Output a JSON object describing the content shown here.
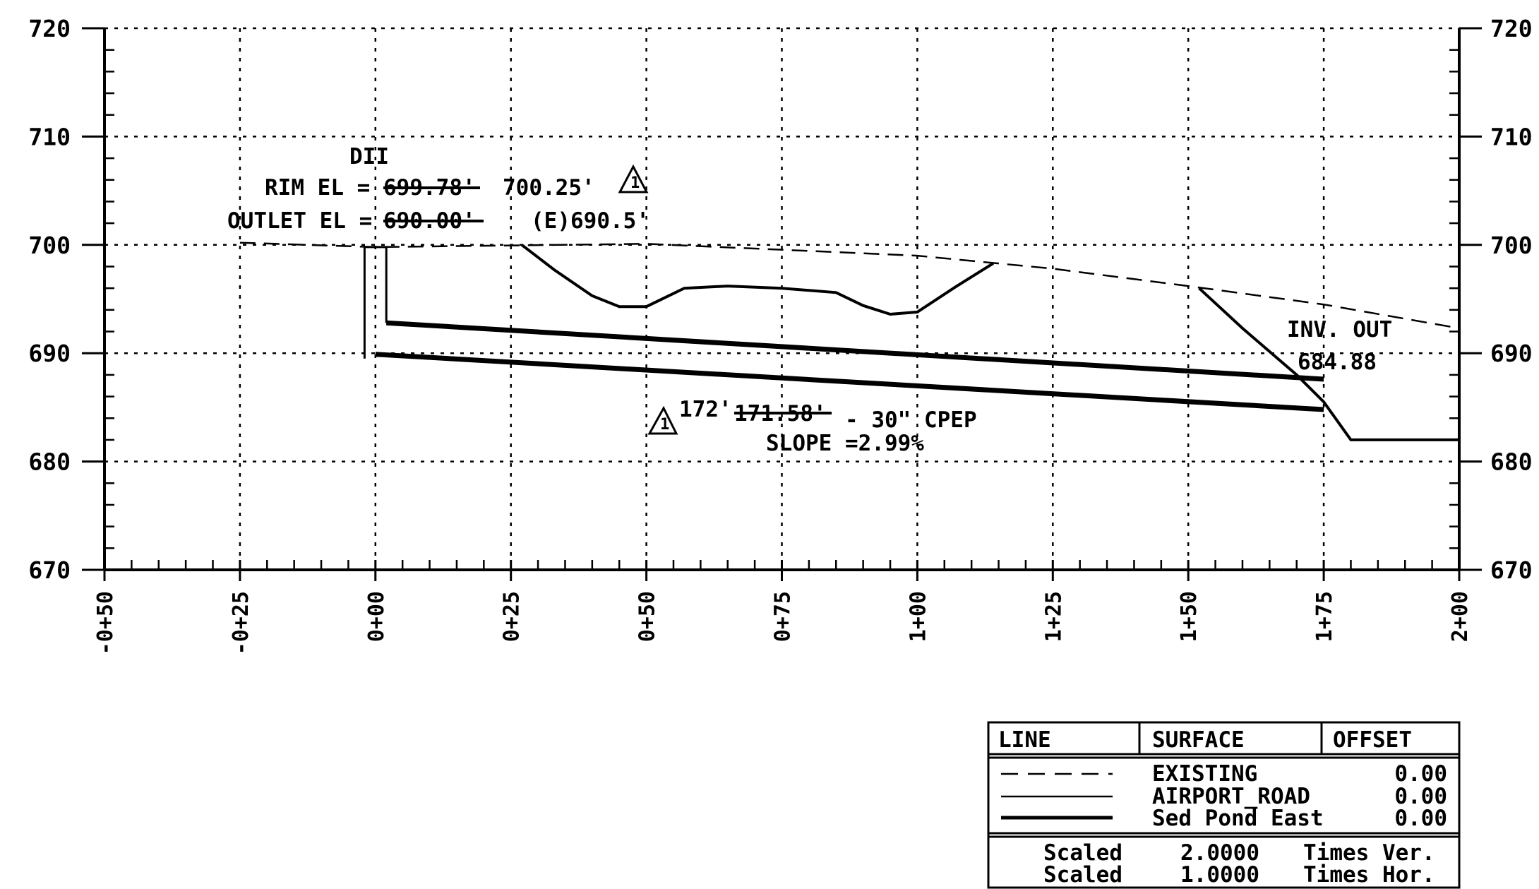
{
  "chart_data": {
    "type": "line",
    "title": "",
    "xlabel": "",
    "ylabel": "",
    "x_range": [
      -50,
      200
    ],
    "y_range": [
      670,
      720
    ],
    "x_ticks": [
      {
        "value": -50,
        "label": "-0+50"
      },
      {
        "value": -25,
        "label": "-0+25"
      },
      {
        "value": 0,
        "label": "0+00"
      },
      {
        "value": 25,
        "label": "0+25"
      },
      {
        "value": 50,
        "label": "0+50"
      },
      {
        "value": 75,
        "label": "0+75"
      },
      {
        "value": 100,
        "label": "1+00"
      },
      {
        "value": 125,
        "label": "1+25"
      },
      {
        "value": 150,
        "label": "1+50"
      },
      {
        "value": 175,
        "label": "1+75"
      },
      {
        "value": 200,
        "label": "2+00"
      }
    ],
    "y_ticks": [
      {
        "value": 670,
        "label": "670"
      },
      {
        "value": 680,
        "label": "680"
      },
      {
        "value": 690,
        "label": "690"
      },
      {
        "value": 700,
        "label": "700"
      },
      {
        "value": 710,
        "label": "710"
      },
      {
        "value": 720,
        "label": "720"
      }
    ],
    "grid": true,
    "series": [
      {
        "name": "EXISTING",
        "style": "dashed",
        "points": [
          [
            -25,
            700.2
          ],
          [
            0,
            699.8
          ],
          [
            50,
            700.1
          ],
          [
            100,
            699.0
          ],
          [
            125,
            697.8
          ],
          [
            150,
            696.2
          ],
          [
            175,
            694.5
          ],
          [
            200,
            692.3
          ]
        ]
      },
      {
        "name": "AIRPORT_ROAD",
        "style": "solid",
        "points": [
          [
            27,
            700.0
          ],
          [
            33,
            697.7
          ],
          [
            40,
            695.3
          ],
          [
            45,
            694.3
          ],
          [
            50,
            694.3
          ],
          [
            57,
            696.0
          ],
          [
            65,
            696.2
          ],
          [
            75,
            696.0
          ],
          [
            85,
            695.6
          ],
          [
            90,
            694.4
          ],
          [
            95,
            693.6
          ],
          [
            100,
            693.8
          ],
          [
            107,
            696.1
          ],
          [
            114,
            698.3
          ]
        ]
      },
      {
        "name": "AIRPORT_ROAD",
        "style": "solid",
        "points": [
          [
            152,
            696.0
          ],
          [
            160,
            692.3
          ],
          [
            170,
            688.0
          ],
          [
            175,
            685.5
          ],
          [
            180,
            682.0
          ],
          [
            200,
            682.0
          ]
        ]
      },
      {
        "name": "Sed Pond East",
        "style": "heavy",
        "points": [
          [
            2,
            692.8
          ],
          [
            175,
            687.6
          ]
        ]
      },
      {
        "name": "Sed Pond East",
        "style": "heavy",
        "points": [
          [
            0,
            689.9
          ],
          [
            175,
            684.8
          ]
        ]
      },
      {
        "name": "structure",
        "style": "thin",
        "points": [
          [
            -2,
            689.5
          ],
          [
            -2,
            699.8
          ],
          [
            2,
            699.8
          ],
          [
            2,
            692.8
          ]
        ]
      }
    ],
    "annotations": {
      "structure_name": "DII",
      "rim_label": "RIM EL =",
      "rim_struck": "699.78'",
      "rim_value": "700.25'",
      "outlet_label": "OUTLET EL =",
      "outlet_struck": "690.00'",
      "outlet_value": "(E)690.5'",
      "revision_mark": "1",
      "pipe_prefix": "172'",
      "pipe_struck": "171.58'",
      "pipe_suffix": "- 30\" CPEP",
      "slope": "SLOPE =2.99%",
      "inv_label": "INV. OUT",
      "inv_value": "684.88"
    }
  },
  "legend": {
    "headers": [
      "LINE",
      "SURFACE",
      "OFFSET"
    ],
    "rows": [
      {
        "surface": "EXISTING",
        "offset": "0.00",
        "line_style": "dashed"
      },
      {
        "surface": "AIRPORT_ROAD",
        "offset": "0.00",
        "line_style": "solid"
      },
      {
        "surface": "Sed Pond East",
        "offset": "0.00",
        "line_style": "heavy"
      }
    ],
    "scale_rows": [
      {
        "label": "Scaled",
        "value": "2.0000",
        "unit": "Times Ver."
      },
      {
        "label": "Scaled",
        "value": "1.0000",
        "unit": "Times Hor."
      }
    ]
  }
}
